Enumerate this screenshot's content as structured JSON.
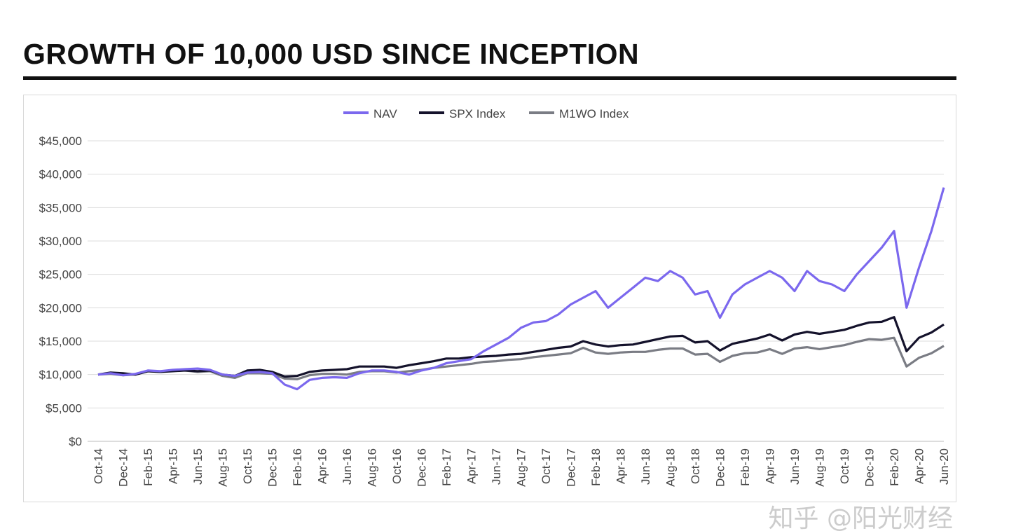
{
  "chart_data": {
    "type": "line",
    "title": "GROWTH OF 10,000 USD SINCE INCEPTION",
    "xlabel": "",
    "ylabel": "",
    "ylim": [
      0,
      45000
    ],
    "yticks": [
      "$0",
      "$5,000",
      "$10,000",
      "$15,000",
      "$20,000",
      "$25,000",
      "$30,000",
      "$35,000",
      "$40,000",
      "$45,000"
    ],
    "ytick_values": [
      0,
      5000,
      10000,
      15000,
      20000,
      25000,
      30000,
      35000,
      40000,
      45000
    ],
    "grid": true,
    "legend": "top-center",
    "x": [
      "Oct-14",
      "Nov-14",
      "Dec-14",
      "Jan-15",
      "Feb-15",
      "Mar-15",
      "Apr-15",
      "May-15",
      "Jun-15",
      "Jul-15",
      "Aug-15",
      "Sep-15",
      "Oct-15",
      "Nov-15",
      "Dec-15",
      "Jan-16",
      "Feb-16",
      "Mar-16",
      "Apr-16",
      "May-16",
      "Jun-16",
      "Jul-16",
      "Aug-16",
      "Sep-16",
      "Oct-16",
      "Nov-16",
      "Dec-16",
      "Jan-17",
      "Feb-17",
      "Mar-17",
      "Apr-17",
      "May-17",
      "Jun-17",
      "Jul-17",
      "Aug-17",
      "Sep-17",
      "Oct-17",
      "Nov-17",
      "Dec-17",
      "Jan-18",
      "Feb-18",
      "Mar-18",
      "Apr-18",
      "May-18",
      "Jun-18",
      "Jul-18",
      "Aug-18",
      "Sep-18",
      "Oct-18",
      "Nov-18",
      "Dec-18",
      "Jan-19",
      "Feb-19",
      "Mar-19",
      "Apr-19",
      "May-19",
      "Jun-19",
      "Jul-19",
      "Aug-19",
      "Sep-19",
      "Oct-19",
      "Nov-19",
      "Dec-19",
      "Jan-20",
      "Feb-20",
      "Mar-20",
      "Apr-20",
      "May-20",
      "Jun-20"
    ],
    "xticks": [
      "Oct-14",
      "Dec-14",
      "Feb-15",
      "Apr-15",
      "Jun-15",
      "Aug-15",
      "Oct-15",
      "Dec-15",
      "Feb-16",
      "Apr-16",
      "Jun-16",
      "Aug-16",
      "Oct-16",
      "Dec-16",
      "Feb-17",
      "Apr-17",
      "Jun-17",
      "Aug-17",
      "Oct-17",
      "Dec-17",
      "Feb-18",
      "Apr-18",
      "Jun-18",
      "Aug-18",
      "Oct-18",
      "Dec-18",
      "Feb-19",
      "Apr-19",
      "Jun-19",
      "Aug-19",
      "Oct-19",
      "Dec-19",
      "Feb-20",
      "Apr-20",
      "Jun-20"
    ],
    "series": [
      {
        "name": "NAV",
        "color": "#7b68ee",
        "values": [
          10000,
          10200,
          9900,
          10100,
          10600,
          10500,
          10700,
          10800,
          10900,
          10700,
          10000,
          9800,
          10300,
          10400,
          10200,
          8500,
          7800,
          9200,
          9500,
          9600,
          9500,
          10200,
          10600,
          10600,
          10400,
          10000,
          10600,
          11000,
          11700,
          12000,
          12300,
          13500,
          14500,
          15500,
          17000,
          17800,
          18000,
          19000,
          20500,
          21500,
          22500,
          20000,
          21500,
          23000,
          24500,
          24000,
          25500,
          24500,
          22000,
          22500,
          18500,
          22000,
          23500,
          24500,
          25500,
          24500,
          22500,
          25500,
          24000,
          23500,
          22500,
          25000,
          27000,
          29000,
          31500,
          20000,
          26000,
          31500,
          38000
        ]
      },
      {
        "name": "SPX Index",
        "color": "#14122b",
        "values": [
          10000,
          10300,
          10200,
          10000,
          10500,
          10400,
          10500,
          10600,
          10500,
          10600,
          10000,
          9800,
          10600,
          10700,
          10400,
          9700,
          9800,
          10400,
          10600,
          10700,
          10800,
          11200,
          11200,
          11200,
          11000,
          11400,
          11700,
          12000,
          12400,
          12400,
          12600,
          12700,
          12800,
          13000,
          13100,
          13400,
          13700,
          14000,
          14200,
          15000,
          14500,
          14200,
          14400,
          14500,
          14900,
          15300,
          15700,
          15800,
          14800,
          15000,
          13600,
          14600,
          15000,
          15400,
          16000,
          15100,
          16000,
          16400,
          16100,
          16400,
          16700,
          17300,
          17800,
          17900,
          18600,
          13500,
          15500,
          16300,
          17500
        ]
      },
      {
        "name": "M1WO Index",
        "color": "#7a7c84",
        "values": [
          10000,
          10100,
          9900,
          10000,
          10500,
          10400,
          10600,
          10600,
          10400,
          10500,
          9800,
          9500,
          10200,
          10200,
          10100,
          9400,
          9300,
          9900,
          10100,
          10100,
          10000,
          10400,
          10500,
          10500,
          10300,
          10500,
          10700,
          11000,
          11200,
          11400,
          11600,
          11900,
          12000,
          12200,
          12300,
          12600,
          12800,
          13000,
          13200,
          14000,
          13300,
          13100,
          13300,
          13400,
          13400,
          13700,
          13900,
          13900,
          13000,
          13100,
          11900,
          12800,
          13200,
          13300,
          13800,
          13100,
          13900,
          14100,
          13800,
          14100,
          14400,
          14900,
          15300,
          15200,
          15500,
          11200,
          12500,
          13200,
          14300
        ]
      }
    ]
  },
  "watermark": "知乎 @阳光财经"
}
